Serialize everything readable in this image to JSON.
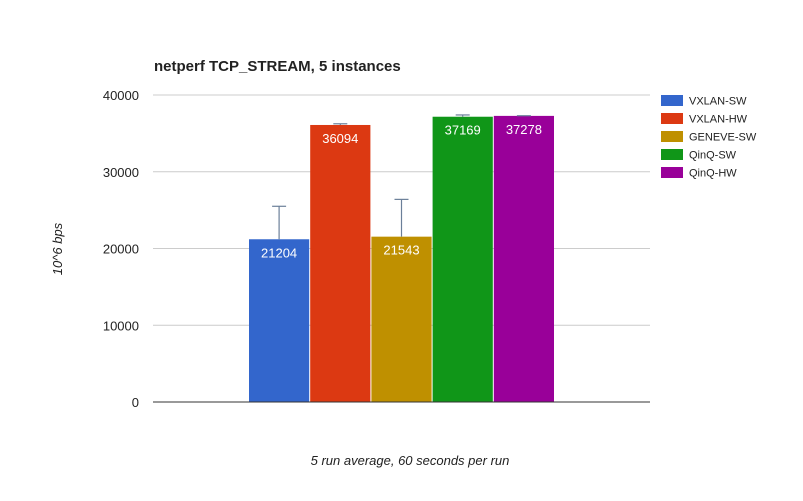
{
  "chart_data": {
    "type": "bar",
    "title": "netperf TCP_STREAM, 5 instances",
    "xlabel": "5 run average, 60 seconds per run",
    "ylabel": "10^6 bps",
    "ylim": [
      0,
      40000
    ],
    "yticks": [
      0,
      10000,
      20000,
      30000,
      40000
    ],
    "grid": true,
    "legend_position": "right",
    "categories": [
      ""
    ],
    "series": [
      {
        "name": "VXLAN-SW",
        "values": [
          21204
        ],
        "error_high": [
          25500
        ],
        "color": "#3366cc"
      },
      {
        "name": "VXLAN-HW",
        "values": [
          36094
        ],
        "error_high": [
          36250
        ],
        "color": "#dc3912"
      },
      {
        "name": "GENEVE-SW",
        "values": [
          21543
        ],
        "error_high": [
          26400
        ],
        "color": "#bf9000"
      },
      {
        "name": "QinQ-SW",
        "values": [
          37169
        ],
        "error_high": [
          37400
        ],
        "color": "#109618"
      },
      {
        "name": "QinQ-HW",
        "values": [
          37278
        ],
        "error_high": [
          37300
        ],
        "color": "#990099"
      }
    ],
    "data_labels": [
      "21204",
      "36094",
      "21543",
      "37169",
      "37278"
    ]
  }
}
